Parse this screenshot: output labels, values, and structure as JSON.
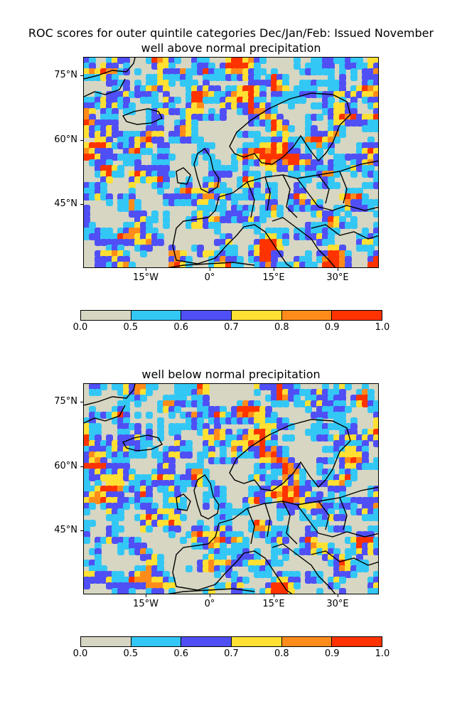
{
  "title_line1": "ROC scores for outer quintile categories Dec/Jan/Feb: Issued November",
  "panels": [
    {
      "subtitle": "well above normal precipitation",
      "yticks": [
        "75°N",
        "60°N",
        "45°N"
      ],
      "xticks": [
        "15°W",
        "0°",
        "15°E",
        "30°E"
      ]
    },
    {
      "subtitle": "well below normal precipitation",
      "yticks": [
        "75°N",
        "60°N",
        "45°N"
      ],
      "xticks": [
        "15°W",
        "0°",
        "15°E",
        "30°E"
      ]
    }
  ],
  "colorbar": {
    "ticks": [
      "0.0",
      "0.5",
      "0.6",
      "0.7",
      "0.8",
      "0.9",
      "1.0"
    ],
    "colors": [
      "#d6d6c2",
      "#33c7f5",
      "#4f4ff5",
      "#ffe033",
      "#ff8c1a",
      "#ff3300"
    ]
  }
}
